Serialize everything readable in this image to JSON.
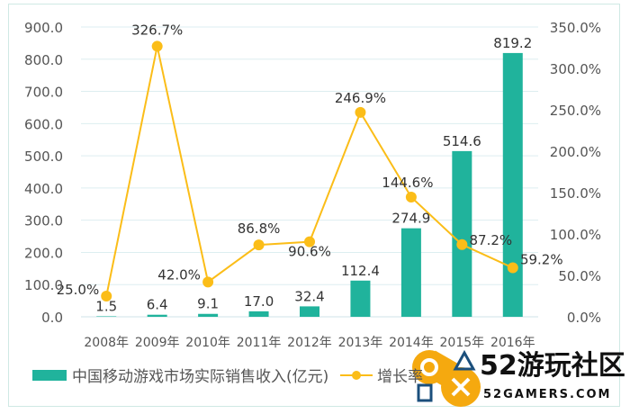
{
  "chart_data": {
    "type": "bar+line",
    "categories": [
      "2008年",
      "2009年",
      "2010年",
      "2011年",
      "2012年",
      "2013年",
      "2014年",
      "2015年",
      "2016年"
    ],
    "series": [
      {
        "name": "中国移动游戏市场实际销售收入(亿元)",
        "type": "bar",
        "axis": "left",
        "values": [
          1.5,
          6.4,
          9.1,
          17.0,
          32.4,
          112.4,
          274.9,
          514.6,
          819.2
        ],
        "labels": [
          "1.5",
          "6.4",
          "9.1",
          "17.0",
          "32.4",
          "112.4",
          "274.9",
          "514.6",
          "819.2"
        ]
      },
      {
        "name": "增长率",
        "type": "line",
        "axis": "right",
        "values": [
          25.0,
          326.7,
          42.0,
          86.8,
          90.6,
          246.9,
          144.6,
          87.2,
          59.2
        ],
        "labels": [
          "25.0%",
          "326.7%",
          "42.0%",
          "86.8%",
          "90.6%",
          "246.9%",
          "144.6%",
          "87.2%",
          "59.2%"
        ]
      }
    ],
    "left_axis": {
      "ylim": [
        0,
        900
      ],
      "ticks": [
        "0.0",
        "100.0",
        "200.0",
        "300.0",
        "400.0",
        "500.0",
        "600.0",
        "700.0",
        "800.0",
        "900.0"
      ]
    },
    "right_axis": {
      "ylim": [
        0,
        350
      ],
      "ticks": [
        "0.0%",
        "50.0%",
        "100.0%",
        "150.0%",
        "200.0%",
        "250.0%",
        "300.0%",
        "350.0%"
      ]
    },
    "grid": true,
    "legend_placement": "bottom",
    "colors": {
      "bar": "#20b39c",
      "line": "#fbbd18",
      "grid": "#ddeef0",
      "text": "#555555"
    }
  },
  "watermark": {
    "text": "52游玩社区",
    "url_text": "52GAMERS.COM"
  }
}
